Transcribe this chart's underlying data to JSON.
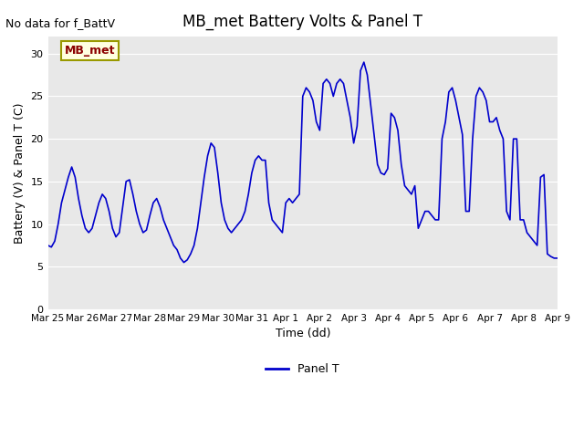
{
  "title": "MB_met Battery Volts & Panel T",
  "no_data_text": "No data for f_BattV",
  "ylabel": "Battery (V) & Panel T (C)",
  "xlabel": "Time (dd)",
  "legend_label": "Panel T",
  "legend_label2": "MB_met",
  "ylim": [
    0,
    32
  ],
  "yticks": [
    0,
    5,
    10,
    15,
    20,
    25,
    30
  ],
  "bg_color": "#e8e8e8",
  "line_color": "#0000cc",
  "x_dates": [
    "Mar 25",
    "Mar 26",
    "Mar 27",
    "Mar 28",
    "Mar 29",
    "Mar 30",
    "Mar 31",
    "Apr 1",
    "Apr 2",
    "Apr 3",
    "Apr 4",
    "Apr 5",
    "Apr 6",
    "Apr 7",
    "Apr 8",
    "Apr 9"
  ],
  "x_values": [
    0,
    1,
    2,
    3,
    4,
    5,
    6,
    7,
    8,
    9,
    10,
    11,
    12,
    13,
    14,
    15
  ],
  "panel_t_x": [
    0.0,
    0.1,
    0.2,
    0.3,
    0.4,
    0.5,
    0.6,
    0.7,
    0.8,
    0.9,
    1.0,
    1.1,
    1.2,
    1.3,
    1.4,
    1.5,
    1.6,
    1.7,
    1.8,
    1.9,
    2.0,
    2.1,
    2.2,
    2.3,
    2.4,
    2.5,
    2.6,
    2.7,
    2.8,
    2.9,
    3.0,
    3.1,
    3.2,
    3.3,
    3.4,
    3.5,
    3.6,
    3.7,
    3.8,
    3.9,
    4.0,
    4.1,
    4.2,
    4.3,
    4.4,
    4.5,
    4.6,
    4.7,
    4.8,
    4.9,
    5.0,
    5.1,
    5.2,
    5.3,
    5.4,
    5.5,
    5.6,
    5.7,
    5.8,
    5.9,
    6.0,
    6.1,
    6.2,
    6.3,
    6.4,
    6.5,
    6.6,
    6.7,
    6.8,
    6.9,
    7.0,
    7.1,
    7.2,
    7.3,
    7.4,
    7.5,
    7.6,
    7.7,
    7.8,
    7.9,
    8.0,
    8.1,
    8.2,
    8.3,
    8.4,
    8.5,
    8.6,
    8.7,
    8.8,
    8.9,
    9.0,
    9.1,
    9.2,
    9.3,
    9.4,
    9.5,
    9.6,
    9.7,
    9.8,
    9.9,
    10.0,
    10.1,
    10.2,
    10.3,
    10.4,
    10.5,
    10.6,
    10.7,
    10.8,
    10.9,
    11.0,
    11.1,
    11.2,
    11.3,
    11.4,
    11.5,
    11.6,
    11.7,
    11.8,
    11.9,
    12.0,
    12.1,
    12.2,
    12.3,
    12.4,
    12.5,
    12.6,
    12.7,
    12.8,
    12.9,
    13.0,
    13.1,
    13.2,
    13.3,
    13.4,
    13.5,
    13.6,
    13.7,
    13.8,
    13.9,
    14.0,
    14.1,
    14.2,
    14.3,
    14.4,
    14.5,
    14.6,
    14.7,
    14.8,
    14.9,
    15.0
  ],
  "panel_t_y": [
    7.5,
    7.3,
    8.0,
    10.0,
    12.5,
    14.0,
    15.5,
    16.7,
    15.5,
    13.0,
    11.0,
    9.5,
    9.0,
    9.5,
    11.0,
    12.5,
    13.5,
    13.0,
    11.5,
    9.5,
    8.5,
    9.0,
    12.0,
    15.0,
    15.2,
    13.5,
    11.5,
    10.0,
    9.0,
    9.3,
    11.0,
    12.5,
    13.0,
    12.0,
    10.5,
    9.5,
    8.5,
    7.5,
    7.0,
    6.0,
    5.5,
    5.8,
    6.5,
    7.5,
    9.5,
    12.5,
    15.5,
    18.0,
    19.5,
    19.0,
    16.0,
    12.5,
    10.5,
    9.5,
    9.0,
    9.5,
    10.0,
    10.5,
    11.5,
    13.5,
    16.0,
    17.5,
    18.0,
    17.5,
    17.5,
    12.5,
    10.5,
    10.0,
    9.5,
    9.0,
    12.5,
    13.0,
    12.5,
    13.0,
    13.5,
    25.0,
    26.0,
    25.5,
    24.5,
    22.0,
    21.0,
    26.5,
    27.0,
    26.5,
    25.0,
    26.5,
    27.0,
    26.5,
    24.5,
    22.5,
    19.5,
    21.5,
    28.0,
    29.0,
    27.5,
    24.0,
    20.5,
    17.0,
    16.0,
    15.8,
    16.5,
    23.0,
    22.5,
    21.0,
    17.0,
    14.5,
    14.0,
    13.5,
    14.5,
    9.5,
    10.5,
    11.5,
    11.5,
    11.0,
    10.5,
    10.5,
    20.0,
    22.0,
    25.5,
    26.0,
    24.5,
    22.5,
    20.5,
    11.5,
    11.5,
    20.0,
    25.0,
    26.0,
    25.5,
    24.5,
    22.0,
    22.0,
    22.5,
    21.0,
    20.0,
    11.5,
    10.5,
    20.0,
    20.0,
    10.5,
    10.5,
    9.0,
    8.5,
    8.0,
    7.5,
    15.5,
    15.8,
    6.5,
    6.2,
    6.0,
    6.0
  ]
}
